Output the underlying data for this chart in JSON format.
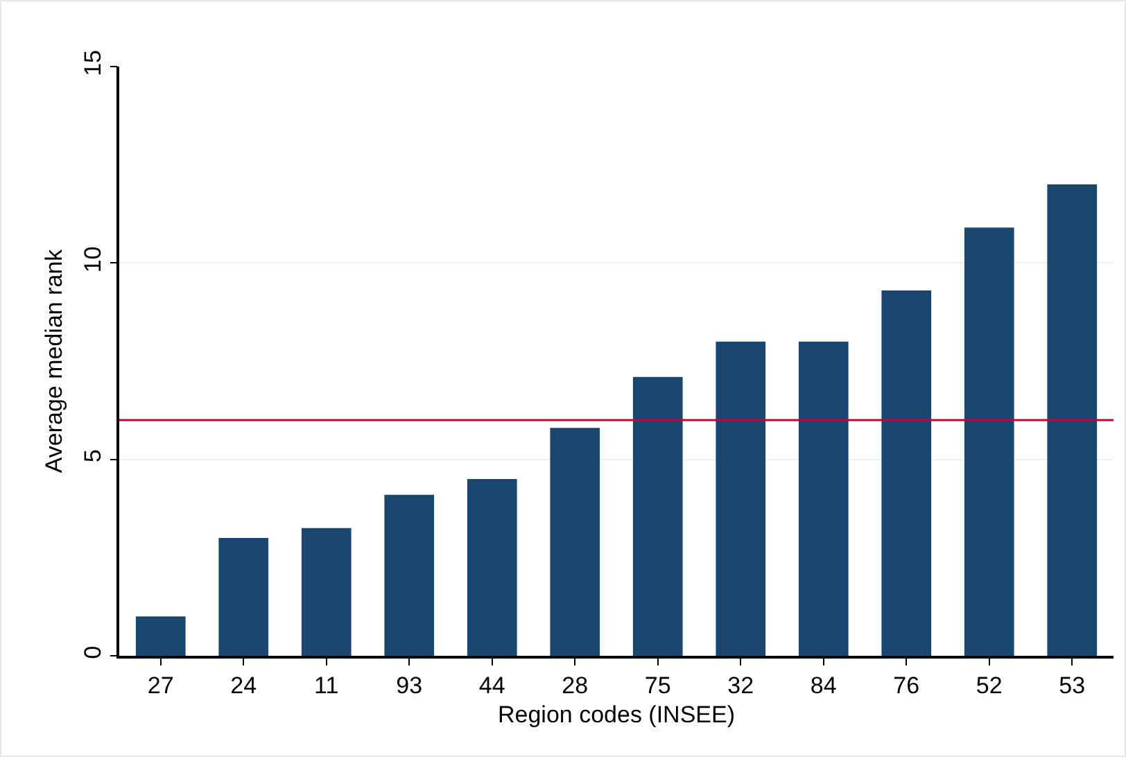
{
  "chart_data": {
    "type": "bar",
    "xlabel": "Region codes (INSEE)",
    "ylabel": "Average median rank",
    "categories": [
      "27",
      "24",
      "11",
      "93",
      "44",
      "28",
      "75",
      "32",
      "84",
      "76",
      "52",
      "53"
    ],
    "values": [
      1.0,
      3.0,
      3.25,
      4.1,
      4.5,
      5.8,
      7.1,
      8.0,
      8.0,
      9.3,
      10.9,
      12.0
    ],
    "color": "#1a476f",
    "ylim": [
      0,
      15
    ],
    "yticks": [
      0,
      5,
      10,
      15
    ],
    "grid": "y",
    "ref_lines": [
      {
        "axis": "y",
        "value": 6.0,
        "color": "#c10534"
      }
    ]
  }
}
